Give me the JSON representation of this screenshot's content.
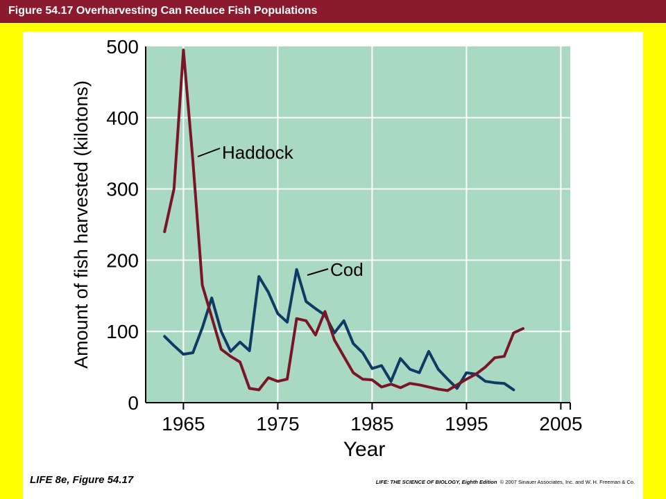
{
  "header": {
    "title": "Figure 54.17 Overharvesting Can Reduce Fish Populations"
  },
  "footer": {
    "left": "LIFE 8e, Figure 54.17",
    "right_book": "LIFE: THE SCIENCE OF BIOLOGY, Eighth Edition",
    "right_copyright": "© 2007 Sinauer Associates, Inc. and W. H. Freeman & Co."
  },
  "colors": {
    "background": "#ffff00",
    "title_bar": "#8b1a2e",
    "plot_background": "#a9d8c3",
    "gridlines": "#ffffff",
    "haddock": "#7a1526",
    "cod": "#0f3a66"
  },
  "chart_data": {
    "type": "line",
    "title": "",
    "xlabel": "Year",
    "ylabel": "Amount of fish harvested (kilotons)",
    "xlim": [
      1961,
      2006
    ],
    "ylim": [
      0,
      500
    ],
    "xticks": [
      1965,
      1975,
      1985,
      1995,
      2005
    ],
    "yticks": [
      0,
      100,
      200,
      300,
      400,
      500
    ],
    "grid": true,
    "series": [
      {
        "name": "Haddock",
        "color": "#7a1526",
        "x": [
          1963,
          1964,
          1965,
          1966,
          1967,
          1968,
          1969,
          1970,
          1971,
          1972,
          1973,
          1974,
          1975,
          1976,
          1977,
          1978,
          1979,
          1980,
          1981,
          1982,
          1983,
          1984,
          1985,
          1986,
          1987,
          1988,
          1989,
          1990,
          1991,
          1992,
          1993,
          1994,
          1995,
          1996,
          1997,
          1998,
          1999,
          2000,
          2001
        ],
        "values": [
          240,
          300,
          495,
          340,
          165,
          120,
          75,
          65,
          57,
          20,
          18,
          35,
          30,
          33,
          118,
          115,
          95,
          128,
          88,
          65,
          42,
          33,
          32,
          22,
          26,
          21,
          27,
          25,
          22,
          19,
          17,
          25,
          33,
          40,
          50,
          63,
          65,
          98,
          104
        ]
      },
      {
        "name": "Cod",
        "color": "#0f3a66",
        "x": [
          1963,
          1964,
          1965,
          1966,
          1967,
          1968,
          1969,
          1970,
          1971,
          1972,
          1973,
          1974,
          1975,
          1976,
          1977,
          1978,
          1979,
          1980,
          1981,
          1982,
          1983,
          1984,
          1985,
          1986,
          1987,
          1988,
          1989,
          1990,
          1991,
          1992,
          1993,
          1994,
          1995,
          1996,
          1997,
          1998,
          1999,
          2000
        ],
        "values": [
          93,
          80,
          68,
          70,
          105,
          147,
          100,
          72,
          85,
          73,
          177,
          155,
          125,
          113,
          187,
          142,
          132,
          123,
          98,
          115,
          83,
          70,
          48,
          52,
          30,
          62,
          47,
          42,
          72,
          47,
          33,
          20,
          42,
          40,
          30,
          28,
          27,
          18
        ]
      }
    ],
    "annotations": [
      "Haddock",
      "Cod"
    ]
  }
}
